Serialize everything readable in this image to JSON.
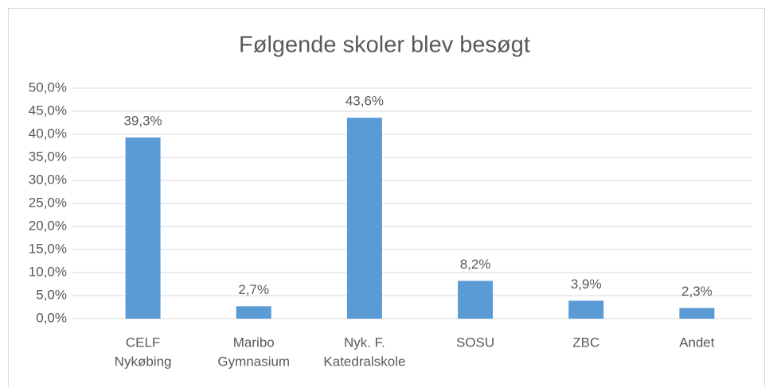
{
  "chart_data": {
    "type": "bar",
    "title": "Følgende skoler blev besøgt",
    "categories": [
      [
        "CELF",
        "Nykøbing"
      ],
      [
        "Maribo",
        "Gymnasium"
      ],
      [
        "Nyk. F.",
        "Katedralskole"
      ],
      [
        "SOSU"
      ],
      [
        "ZBC"
      ],
      [
        "Andet"
      ]
    ],
    "values": [
      39.3,
      2.7,
      43.6,
      8.2,
      3.9,
      2.3
    ],
    "value_labels": [
      "39,3%",
      "2,7%",
      "43,6%",
      "8,2%",
      "3,9%",
      "2,3%"
    ],
    "color": "#5b9bd5",
    "ylim": [
      0,
      50
    ],
    "yticks": [
      {
        "value": 0,
        "label": "0,0%"
      },
      {
        "value": 5,
        "label": "5,0%"
      },
      {
        "value": 10,
        "label": "10,0%"
      },
      {
        "value": 15,
        "label": "15,0%"
      },
      {
        "value": 20,
        "label": "20,0%"
      },
      {
        "value": 25,
        "label": "25,0%"
      },
      {
        "value": 30,
        "label": "30,0%"
      },
      {
        "value": 35,
        "label": "35,0%"
      },
      {
        "value": 40,
        "label": "40,0%"
      },
      {
        "value": 45,
        "label": "45,0%"
      },
      {
        "value": 50,
        "label": "50,0%"
      }
    ],
    "grid": true
  }
}
